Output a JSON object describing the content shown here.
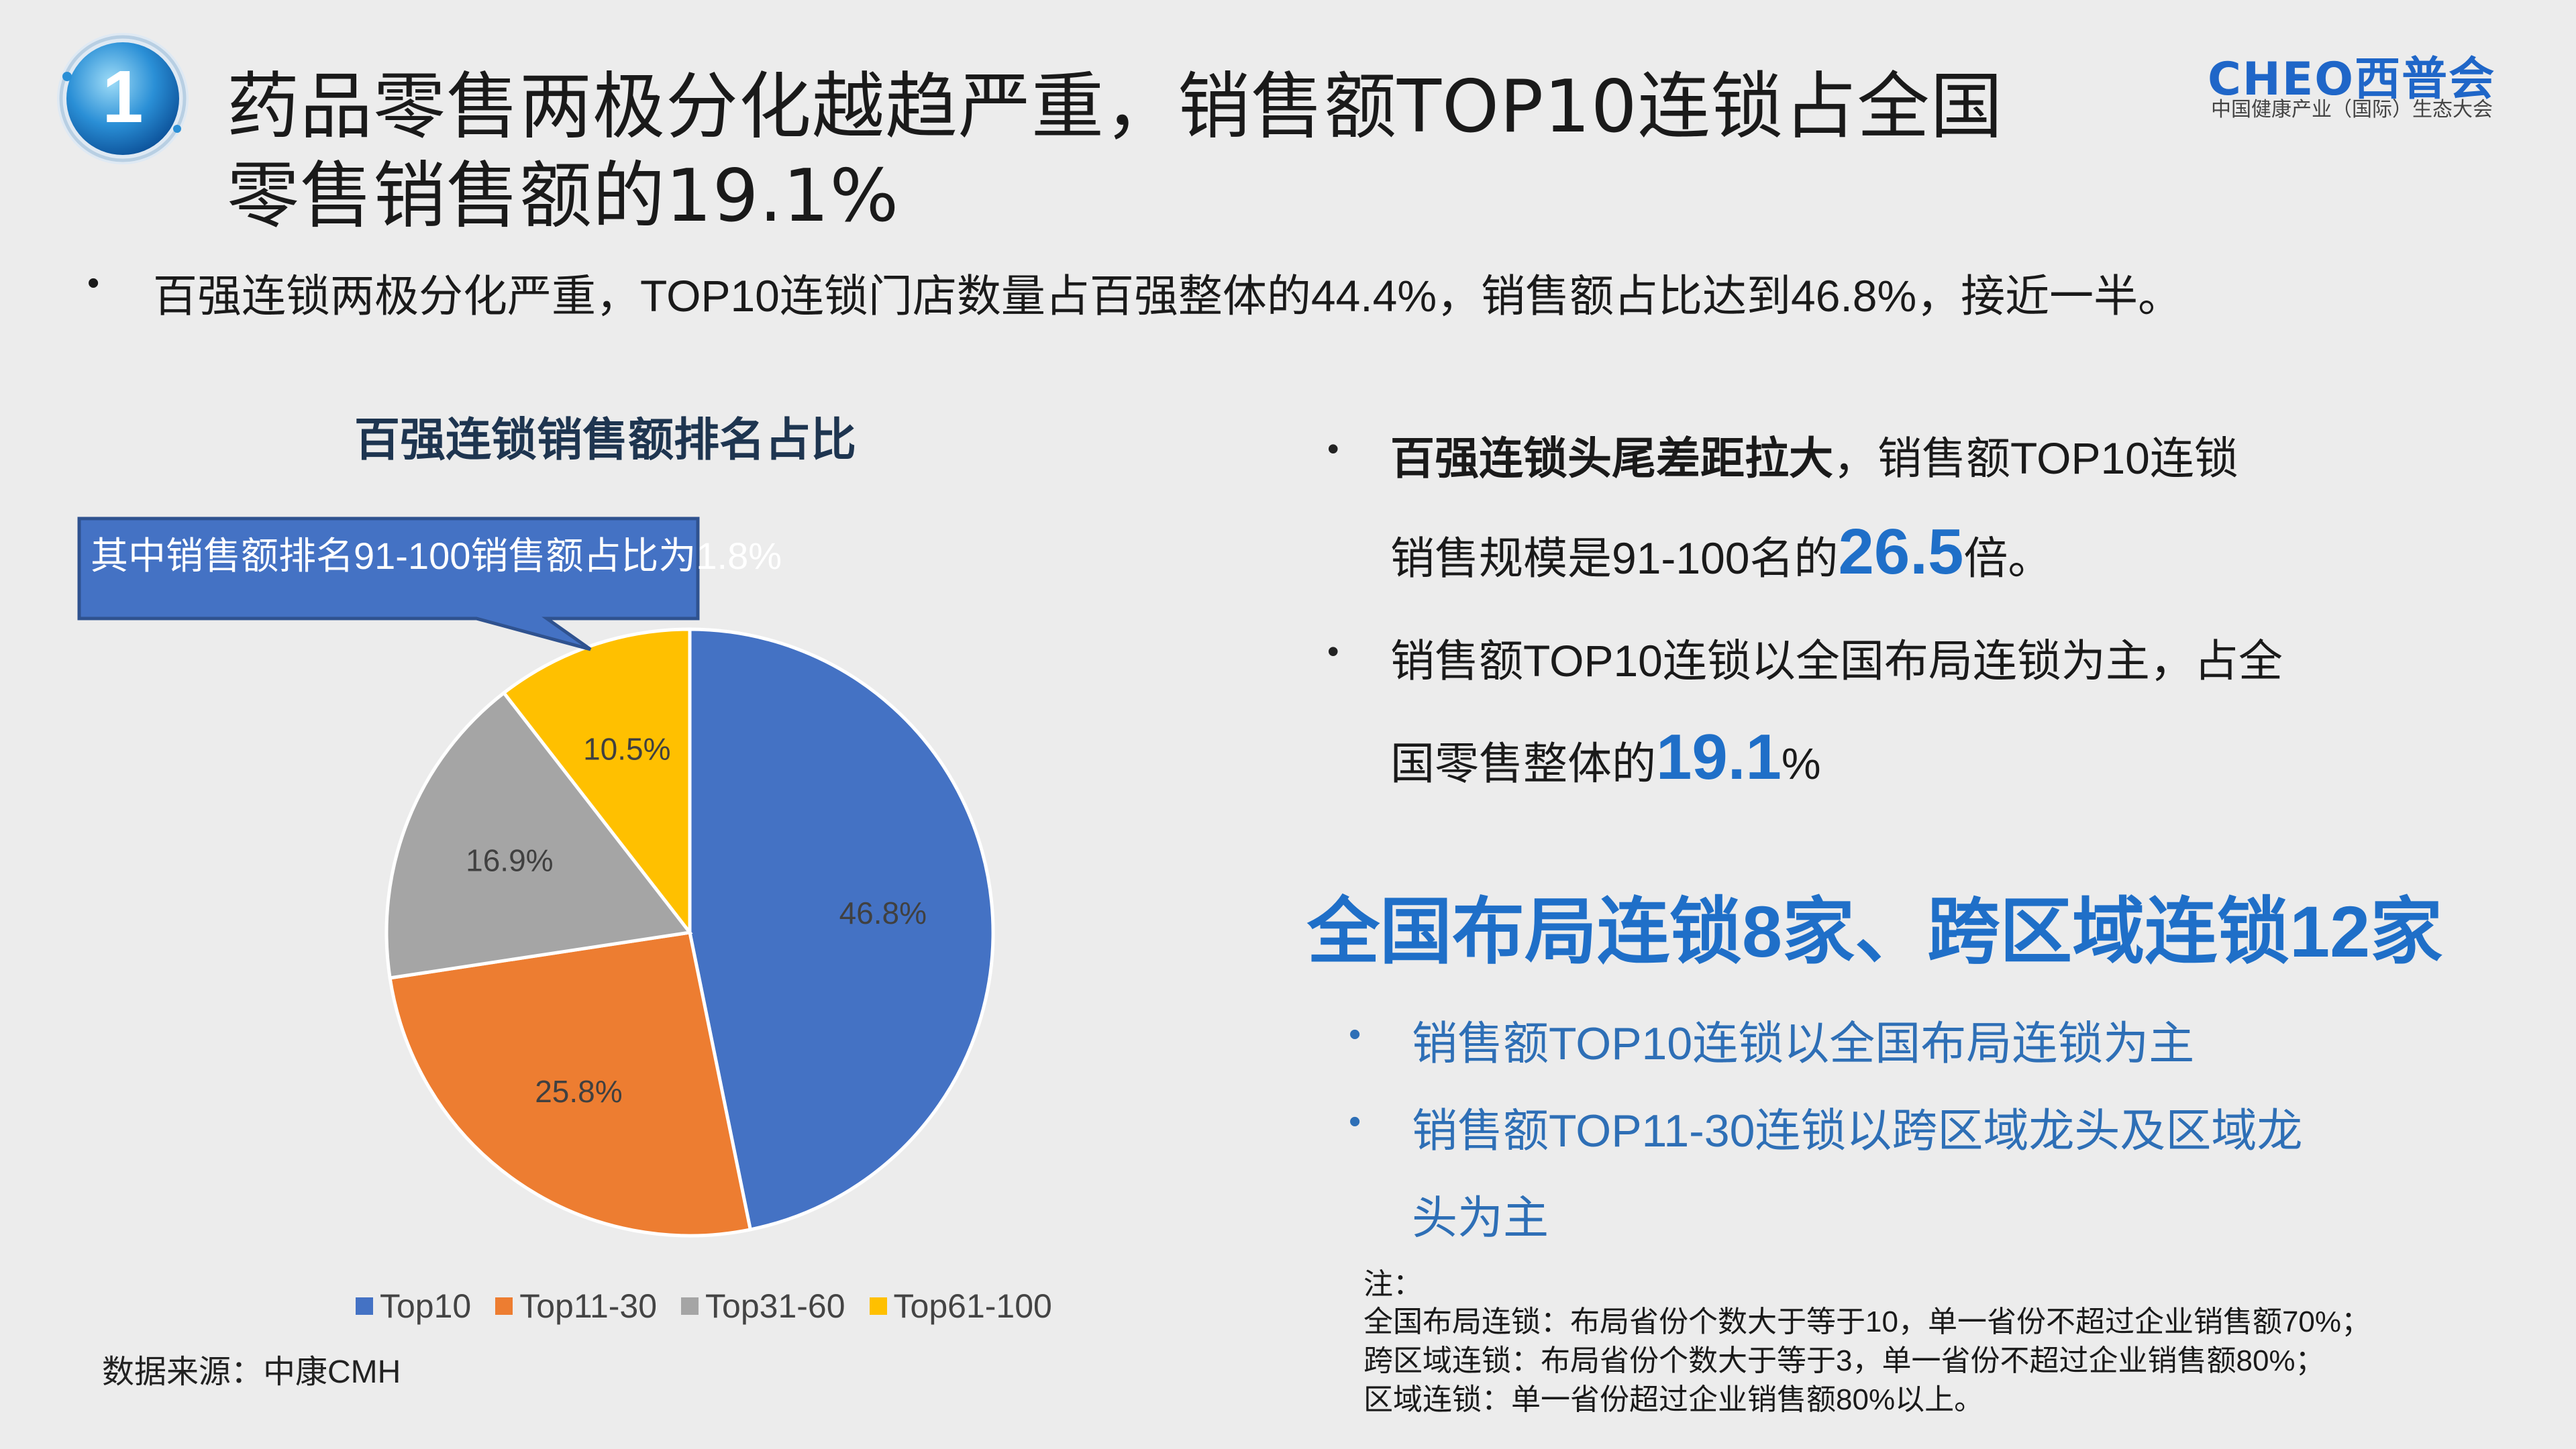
{
  "header": {
    "title_line1": "药品零售两极分化越趋严重，销售额TOP10连锁占全国",
    "title_line2": "零售销售额的19.1%",
    "badge_number": "1",
    "logo_text": "CHEO西普会",
    "logo_subtitle": "中国健康产业（国际）生态大会"
  },
  "top_bullet": "百强连锁两极分化严重，TOP10连锁门店数量占百强整体的44.4%，销售额占比达到46.8%，接近一半。",
  "callout": "其中销售额排名91-100销售额占比为1.8%",
  "source": "数据来源：中康CMH",
  "right": {
    "b1_bold": "百强连锁头尾差距拉大",
    "b1_rest": "，销售额TOP10连锁",
    "b1_line2_pre": "销售规模是91-100名的",
    "b1_big": "26.5",
    "b1_line2_post": "倍。",
    "b2_line1": "销售额TOP10连锁以全国布局连锁为主，占全",
    "b2_line2_pre": "国零售整体的",
    "b2_big": "19.1",
    "b2_line2_post": "%",
    "headline": "全国布局连锁8家、跨区域连锁12家",
    "blue_b1": "销售额TOP10连锁以全国布局连锁为主",
    "blue_b2_line1": "销售额TOP11-30连锁以跨区域龙头及区域龙",
    "blue_b2_line2": "头为主"
  },
  "notes": {
    "label": "注：",
    "n1": "全国布局连锁：布局省份个数大于等于10，单一省份不超过企业销售额70%；",
    "n2": "跨区域连锁：布局省份个数大于等于3，单一省份不超过企业销售额80%；",
    "n3": "区域连锁：单一省份超过企业销售额80%以上。"
  },
  "chart_data": {
    "type": "pie",
    "title": "百强连锁销售额排名占比",
    "categories": [
      "Top10",
      "Top11-30",
      "Top31-60",
      "Top61-100"
    ],
    "values": [
      46.8,
      25.8,
      16.9,
      10.5
    ],
    "labels": [
      "46.8%",
      "25.8%",
      "16.9%",
      "10.5%"
    ],
    "colors": [
      "#4472c4",
      "#ed7d31",
      "#a5a5a5",
      "#ffc000"
    ],
    "legend_position": "bottom"
  }
}
